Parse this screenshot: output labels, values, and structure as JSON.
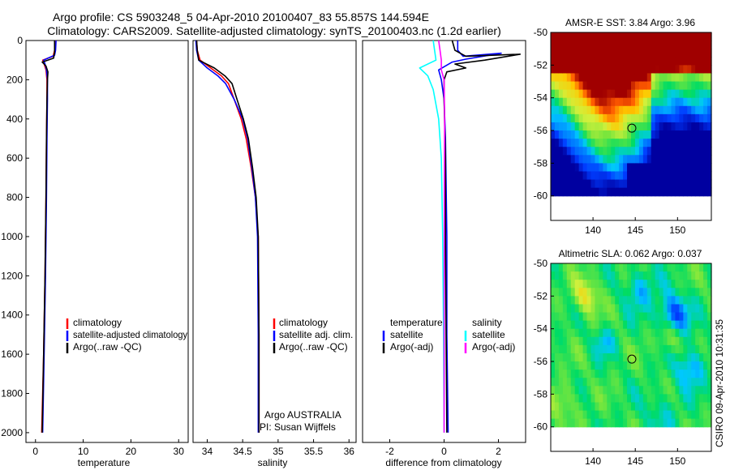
{
  "title": {
    "line1": "Argo profile: CS 5903248_5 04-Apr-2010 20100407_83 55.857S 144.594E",
    "line2": "Climatology: CARS2009. Satellite-adjusted climatology: synTS_20100403.nc (1.2d earlier)"
  },
  "y_ticks": [
    "0",
    "200",
    "400",
    "600",
    "800",
    "1000",
    "1200",
    "1400",
    "1600",
    "1800",
    "2000"
  ],
  "colors": {
    "climatology": "#ff0000",
    "satellite": "#0000ff",
    "argo": "#000000",
    "sat_salinity": "#00ffff",
    "argo_adj_salinity": "#ff00ff"
  },
  "chart_data": [
    {
      "type": "line",
      "name": "temperature",
      "xlabel": "temperature",
      "xlim": [
        -2,
        32
      ],
      "ylim": [
        0,
        2050
      ],
      "y_inverted": true,
      "x_ticks": [
        "0",
        "10",
        "20",
        "30"
      ],
      "x_tick_values": [
        0,
        10,
        20,
        30
      ],
      "legend": [
        "climatology",
        "satellite-adjusted climatology",
        "Argo(..raw -QC)"
      ],
      "series": [
        {
          "name": "climatology",
          "color": "#ff0000",
          "points": [
            [
              4.2,
              0
            ],
            [
              4.0,
              50
            ],
            [
              3.7,
              80
            ],
            [
              1.5,
              100
            ],
            [
              1.8,
              120
            ],
            [
              2.2,
              150
            ],
            [
              2.4,
              200
            ],
            [
              2.4,
              300
            ],
            [
              2.3,
              500
            ],
            [
              2.2,
              800
            ],
            [
              2.0,
              1200
            ],
            [
              1.7,
              1600
            ],
            [
              1.3,
              2000
            ]
          ]
        },
        {
          "name": "satellite-adjusted climatology",
          "color": "#0000ff",
          "points": [
            [
              4.3,
              0
            ],
            [
              4.2,
              50
            ],
            [
              4.0,
              75
            ],
            [
              1.7,
              100
            ],
            [
              2.0,
              120
            ],
            [
              2.3,
              150
            ],
            [
              2.5,
              200
            ],
            [
              2.5,
              300
            ],
            [
              2.4,
              500
            ],
            [
              2.3,
              800
            ],
            [
              2.1,
              1200
            ],
            [
              1.8,
              1600
            ],
            [
              1.5,
              2000
            ]
          ]
        },
        {
          "name": "Argo(..raw -QC)",
          "color": "#000000",
          "points": [
            [
              4.0,
              0
            ],
            [
              4.0,
              60
            ],
            [
              3.8,
              90
            ],
            [
              1.4,
              110
            ],
            [
              2.2,
              130
            ],
            [
              2.6,
              160
            ],
            [
              2.5,
              200
            ],
            [
              2.4,
              300
            ],
            [
              2.3,
              500
            ],
            [
              2.2,
              800
            ],
            [
              2.0,
              1200
            ],
            [
              1.7,
              1600
            ],
            [
              1.4,
              2000
            ]
          ]
        }
      ]
    },
    {
      "type": "line",
      "name": "salinity",
      "xlabel": "salinity",
      "xlim": [
        33.8,
        36.1
      ],
      "ylim": [
        0,
        2050
      ],
      "y_inverted": true,
      "x_ticks": [
        "34",
        "34.5",
        "35",
        "35.5",
        "36"
      ],
      "x_tick_values": [
        34,
        34.5,
        35,
        35.5,
        36
      ],
      "legend": [
        "climatology",
        "satellite adj. clim.",
        "Argo(..raw -QC)"
      ],
      "annotation": [
        "Argo AUSTRALIA",
        "PI: Susan Wijffels"
      ],
      "series": [
        {
          "name": "climatology",
          "color": "#ff0000",
          "points": [
            [
              33.85,
              0
            ],
            [
              33.86,
              50
            ],
            [
              33.9,
              100
            ],
            [
              34.05,
              140
            ],
            [
              34.2,
              180
            ],
            [
              34.3,
              220
            ],
            [
              34.38,
              300
            ],
            [
              34.48,
              400
            ],
            [
              34.55,
              500
            ],
            [
              34.62,
              650
            ],
            [
              34.68,
              800
            ],
            [
              34.72,
              1000
            ],
            [
              34.73,
              1500
            ],
            [
              34.73,
              2000
            ]
          ]
        },
        {
          "name": "satellite adj. clim.",
          "color": "#0000ff",
          "points": [
            [
              33.84,
              0
            ],
            [
              33.85,
              50
            ],
            [
              33.88,
              100
            ],
            [
              34.0,
              140
            ],
            [
              34.15,
              180
            ],
            [
              34.26,
              220
            ],
            [
              34.38,
              300
            ],
            [
              34.5,
              400
            ],
            [
              34.57,
              500
            ],
            [
              34.63,
              650
            ],
            [
              34.68,
              800
            ],
            [
              34.71,
              1000
            ],
            [
              34.72,
              1500
            ],
            [
              34.72,
              2000
            ]
          ]
        },
        {
          "name": "Argo(..raw -QC)",
          "color": "#000000",
          "points": [
            [
              33.85,
              0
            ],
            [
              33.86,
              50
            ],
            [
              33.88,
              100
            ],
            [
              34.1,
              140
            ],
            [
              34.25,
              180
            ],
            [
              34.35,
              220
            ],
            [
              34.42,
              300
            ],
            [
              34.51,
              400
            ],
            [
              34.58,
              500
            ],
            [
              34.64,
              650
            ],
            [
              34.69,
              800
            ],
            [
              34.72,
              1000
            ],
            [
              34.73,
              1500
            ],
            [
              34.73,
              2000
            ]
          ]
        }
      ]
    },
    {
      "type": "line",
      "name": "difference",
      "xlabel": "difference from climatology",
      "xlim": [
        -3,
        3
      ],
      "ylim": [
        0,
        2050
      ],
      "y_inverted": true,
      "x_ticks": [
        "-2",
        "0",
        "2"
      ],
      "x_tick_values": [
        -2,
        0,
        2
      ],
      "legend_temperature": {
        "title": "temperature",
        "items": [
          "satellite",
          "Argo(-adj)"
        ]
      },
      "legend_salinity": {
        "title": "salinity",
        "items": [
          "satellite",
          "Argo(-adj)"
        ]
      },
      "series": [
        {
          "name": "temperature satellite",
          "color": "#0000ff",
          "points": [
            [
              0.5,
              0
            ],
            [
              0.5,
              50
            ],
            [
              0.7,
              80
            ],
            [
              2.1,
              65
            ],
            [
              0.8,
              95
            ],
            [
              0.3,
              110
            ],
            [
              -0.2,
              150
            ],
            [
              -0.1,
              200
            ],
            [
              0.0,
              300
            ],
            [
              0.05,
              500
            ],
            [
              0.1,
              1000
            ],
            [
              0.1,
              1500
            ],
            [
              0.15,
              2000
            ]
          ]
        },
        {
          "name": "temperature Argo(-adj)",
          "color": "#000000",
          "points": [
            [
              0.3,
              0
            ],
            [
              0.4,
              50
            ],
            [
              0.8,
              80
            ],
            [
              2.8,
              70
            ],
            [
              1.5,
              100
            ],
            [
              0.4,
              120
            ],
            [
              0.8,
              140
            ],
            [
              0.1,
              160
            ],
            [
              0.0,
              200
            ],
            [
              0.0,
              300
            ],
            [
              0.05,
              600
            ],
            [
              0.05,
              1000
            ],
            [
              0.1,
              2000
            ]
          ]
        },
        {
          "name": "salinity satellite",
          "color": "#00ffff",
          "points": [
            [
              -0.4,
              0
            ],
            [
              -0.35,
              50
            ],
            [
              -0.3,
              100
            ],
            [
              -0.9,
              140
            ],
            [
              -0.6,
              180
            ],
            [
              -0.4,
              250
            ],
            [
              -0.2,
              400
            ],
            [
              -0.1,
              600
            ],
            [
              -0.05,
              1000
            ],
            [
              -0.02,
              1500
            ],
            [
              0.0,
              2000
            ]
          ]
        },
        {
          "name": "salinity Argo(-adj)",
          "color": "#ff00ff",
          "points": [
            [
              -0.2,
              0
            ],
            [
              -0.15,
              50
            ],
            [
              -0.1,
              100
            ],
            [
              -0.1,
              150
            ],
            [
              0.0,
              200
            ],
            [
              0.02,
              400
            ],
            [
              0.01,
              800
            ],
            [
              0.0,
              2000
            ]
          ]
        }
      ]
    },
    {
      "type": "heatmap",
      "name": "sst_map",
      "title": "AMSR-E SST: 3.84 Argo: 3.96",
      "xlim": [
        135,
        154
      ],
      "ylim": [
        -61.5,
        -50
      ],
      "x_ticks": [
        "140",
        "145",
        "150"
      ],
      "x_tick_values": [
        140,
        145,
        150
      ],
      "y_ticks": [
        "-50",
        "-52",
        "-54",
        "-56",
        "-58",
        "-60"
      ],
      "y_tick_values": [
        -50,
        -52,
        -54,
        -56,
        -58,
        -60
      ],
      "data_extent_lat": [
        -60,
        -50
      ],
      "marker": {
        "lon": 144.594,
        "lat": -55.857
      }
    },
    {
      "type": "heatmap",
      "name": "sla_map",
      "title": "Altimetric SLA: 0.062 Argo: 0.037",
      "xlim": [
        135,
        154
      ],
      "ylim": [
        -61.5,
        -50
      ],
      "x_ticks": [
        "140",
        "145",
        "150"
      ],
      "x_tick_values": [
        140,
        145,
        150
      ],
      "y_ticks": [
        "-50",
        "-52",
        "-54",
        "-56",
        "-58",
        "-60"
      ],
      "y_tick_values": [
        -50,
        -52,
        -54,
        -56,
        -58,
        -60
      ],
      "data_extent_lat": [
        -60,
        -50
      ],
      "marker": {
        "lon": 144.594,
        "lat": -55.857
      }
    }
  ],
  "footer": "CSIRO 09-Apr-2010 10:31:35"
}
